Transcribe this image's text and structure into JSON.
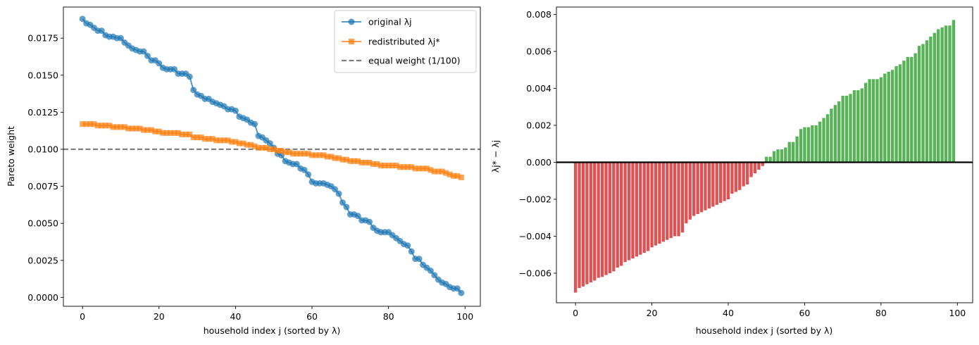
{
  "chart_data": [
    {
      "type": "line",
      "xlabel": "household index j (sorted by λ)",
      "ylabel": "Pareto weight",
      "xlim": [
        -5,
        104
      ],
      "ylim": [
        -0.0006,
        0.0196
      ],
      "xticks": [
        "0",
        "20",
        "40",
        "60",
        "80",
        "100"
      ],
      "yticks": [
        "0.0000",
        "0.0025",
        "0.0050",
        "0.0075",
        "0.0100",
        "0.0125",
        "0.0150",
        "0.0175"
      ],
      "reference_line": {
        "y": 0.01,
        "label": "equal weight (1/100)",
        "color": "#7f7f7f"
      },
      "legend": [
        "original λj",
        "redistributed λj*",
        "equal weight (1/100)"
      ],
      "series": [
        {
          "name": "original λj",
          "color": "#1f77b4",
          "values": [
            0.0188,
            0.0185,
            0.0184,
            0.0182,
            0.018,
            0.018,
            0.0177,
            0.0176,
            0.0176,
            0.0175,
            0.0175,
            0.0172,
            0.017,
            0.0168,
            0.0167,
            0.0166,
            0.0166,
            0.0163,
            0.016,
            0.016,
            0.0158,
            0.0155,
            0.0154,
            0.0154,
            0.0154,
            0.0151,
            0.0151,
            0.0151,
            0.0149,
            0.014,
            0.0137,
            0.0136,
            0.0134,
            0.0134,
            0.0132,
            0.0131,
            0.013,
            0.0129,
            0.0127,
            0.0127,
            0.0126,
            0.0122,
            0.0121,
            0.012,
            0.0118,
            0.0117,
            0.0109,
            0.0108,
            0.0106,
            0.0104,
            0.0101,
            0.0097,
            0.0096,
            0.0092,
            0.0091,
            0.009,
            0.009,
            0.0087,
            0.0086,
            0.0083,
            0.0078,
            0.0077,
            0.0077,
            0.0077,
            0.0076,
            0.0075,
            0.0073,
            0.007,
            0.0064,
            0.0061,
            0.0056,
            0.0056,
            0.0055,
            0.0052,
            0.0052,
            0.0051,
            0.0047,
            0.0045,
            0.0044,
            0.0044,
            0.0044,
            0.0042,
            0.004,
            0.0038,
            0.0036,
            0.0035,
            0.0031,
            0.0026,
            0.0026,
            0.0022,
            0.002,
            0.0018,
            0.0015,
            0.0012,
            0.001,
            0.0009,
            0.0007,
            0.0006,
            0.0006,
            0.0003
          ]
        },
        {
          "name": "redistributed λj*",
          "color": "#ff7f0e",
          "values": [
            0.0117,
            0.0117,
            0.0117,
            0.0117,
            0.0116,
            0.0116,
            0.0116,
            0.0116,
            0.0115,
            0.0115,
            0.0115,
            0.0115,
            0.0114,
            0.0114,
            0.0114,
            0.0114,
            0.0113,
            0.0113,
            0.0113,
            0.0112,
            0.0112,
            0.0111,
            0.0111,
            0.0111,
            0.0111,
            0.0111,
            0.011,
            0.011,
            0.011,
            0.0108,
            0.0108,
            0.0108,
            0.0107,
            0.0107,
            0.0107,
            0.0106,
            0.0106,
            0.0106,
            0.0106,
            0.0105,
            0.0105,
            0.0104,
            0.0104,
            0.0103,
            0.0103,
            0.0102,
            0.0101,
            0.0101,
            0.0101,
            0.01,
            0.01,
            0.0099,
            0.0099,
            0.0098,
            0.0098,
            0.0097,
            0.0097,
            0.0097,
            0.0097,
            0.0097,
            0.0096,
            0.0096,
            0.0096,
            0.0096,
            0.0095,
            0.0095,
            0.0094,
            0.0094,
            0.0093,
            0.0093,
            0.0092,
            0.0092,
            0.0092,
            0.0091,
            0.0091,
            0.0091,
            0.009,
            0.009,
            0.0089,
            0.0089,
            0.0089,
            0.0089,
            0.0089,
            0.0088,
            0.0088,
            0.0088,
            0.0088,
            0.0087,
            0.0087,
            0.0087,
            0.0087,
            0.0086,
            0.0085,
            0.0085,
            0.0085,
            0.0084,
            0.0083,
            0.0082,
            0.0082,
            0.0081
          ]
        }
      ]
    },
    {
      "type": "bar",
      "xlabel": "household index j (sorted by λ)",
      "ylabel": "λj* − λj",
      "xlim": [
        -5,
        104
      ],
      "ylim": [
        -0.0076,
        0.0084
      ],
      "xticks": [
        "0",
        "20",
        "40",
        "60",
        "80",
        "100"
      ],
      "yticks": [
        "−0.006",
        "−0.004",
        "−0.002",
        "0.000",
        "0.002",
        "0.004",
        "0.006",
        "0.008"
      ],
      "positive_color": "#2ca02c",
      "negative_color": "#d62728",
      "values": [
        -0.00705,
        -0.0068,
        -0.00672,
        -0.0066,
        -0.0065,
        -0.0064,
        -0.00625,
        -0.0062,
        -0.0061,
        -0.006,
        -0.0059,
        -0.0057,
        -0.0056,
        -0.0054,
        -0.0053,
        -0.0052,
        -0.0051,
        -0.005,
        -0.0049,
        -0.0048,
        -0.0046,
        -0.0045,
        -0.0044,
        -0.0043,
        -0.0042,
        -0.0041,
        -0.004,
        -0.004,
        -0.0038,
        -0.0033,
        -0.0031,
        -0.0029,
        -0.0028,
        -0.0027,
        -0.0026,
        -0.0025,
        -0.0024,
        -0.0023,
        -0.0022,
        -0.0021,
        -0.002,
        -0.0017,
        -0.0016,
        -0.0015,
        -0.0013,
        -0.0012,
        -0.0008,
        -0.0006,
        -0.0004,
        -0.0002,
        0.0003,
        0.0003,
        0.0006,
        0.0007,
        0.0007,
        0.0008,
        0.0011,
        0.0011,
        0.0014,
        0.0018,
        0.0019,
        0.0019,
        0.002,
        0.002,
        0.0022,
        0.0024,
        0.0026,
        0.0029,
        0.0031,
        0.0033,
        0.0036,
        0.0036,
        0.0037,
        0.0039,
        0.0039,
        0.004,
        0.0043,
        0.0045,
        0.0045,
        0.0045,
        0.0046,
        0.0048,
        0.0049,
        0.005,
        0.0052,
        0.0053,
        0.0055,
        0.0057,
        0.0057,
        0.0059,
        0.0063,
        0.0064,
        0.0066,
        0.0068,
        0.007,
        0.0072,
        0.0073,
        0.0074,
        0.0074,
        0.0077
      ]
    }
  ]
}
